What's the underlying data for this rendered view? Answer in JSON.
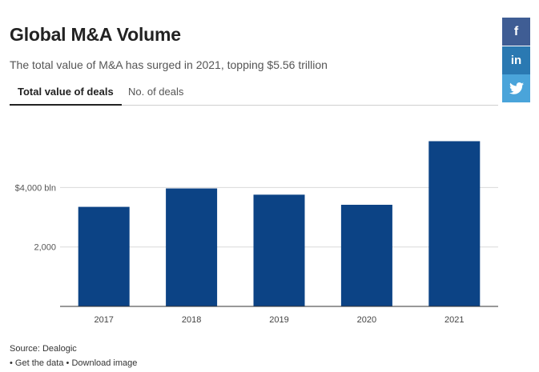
{
  "header": {
    "title": "Global M&A Volume",
    "subtitle": "The total value of M&A has surged in 2021, topping $5.56 trillion"
  },
  "tabs": [
    {
      "label": "Total value of deals",
      "active": true
    },
    {
      "label": "No. of deals",
      "active": false
    }
  ],
  "social": [
    {
      "name": "facebook",
      "glyph": "f",
      "color": "#3f5d94"
    },
    {
      "name": "linkedin",
      "glyph": "in",
      "color": "#2a79b2"
    },
    {
      "name": "twitter",
      "glyph": "bird",
      "color": "#4aa4da"
    }
  ],
  "chart_data": {
    "type": "bar",
    "categories": [
      "2017",
      "2018",
      "2019",
      "2020",
      "2021"
    ],
    "values": [
      3350,
      3970,
      3760,
      3420,
      5560
    ],
    "ylim": [
      0,
      5600
    ],
    "yticks": [
      {
        "value": 2000,
        "label": "2,000"
      },
      {
        "value": 4000,
        "label": "$4,000 bln"
      }
    ],
    "grid": true,
    "bar_color": "#0c4385"
  },
  "footer": {
    "source": "Source: Dealogic",
    "bullet": "•",
    "get_data": "Get the data",
    "download": "Download image"
  }
}
